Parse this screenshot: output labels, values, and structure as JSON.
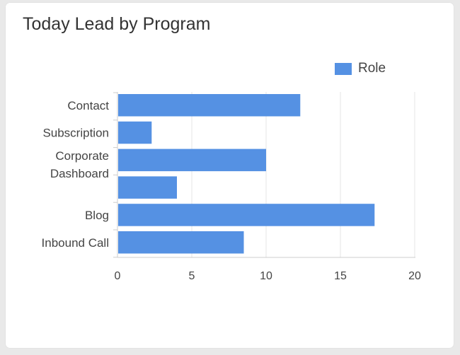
{
  "card": {
    "title": "Today Lead by Program"
  },
  "chart_data": {
    "type": "bar",
    "orientation": "horizontal",
    "title": "Today Lead by Program",
    "categories": [
      [
        "Contact"
      ],
      [
        "Subscription"
      ],
      [
        "Corporate",
        "Dashboard"
      ],
      [
        ""
      ],
      [
        "Blog"
      ],
      [
        "Inbound Call"
      ]
    ],
    "series": [
      {
        "name": "Role",
        "values": [
          12.3,
          2.3,
          10,
          4,
          17.3,
          8.5
        ],
        "color": "#5591e3"
      }
    ],
    "xlim": [
      0,
      20
    ],
    "xticks": [
      "0",
      "5",
      "10",
      "15",
      "20"
    ],
    "grid": true,
    "legend": "top-right"
  }
}
